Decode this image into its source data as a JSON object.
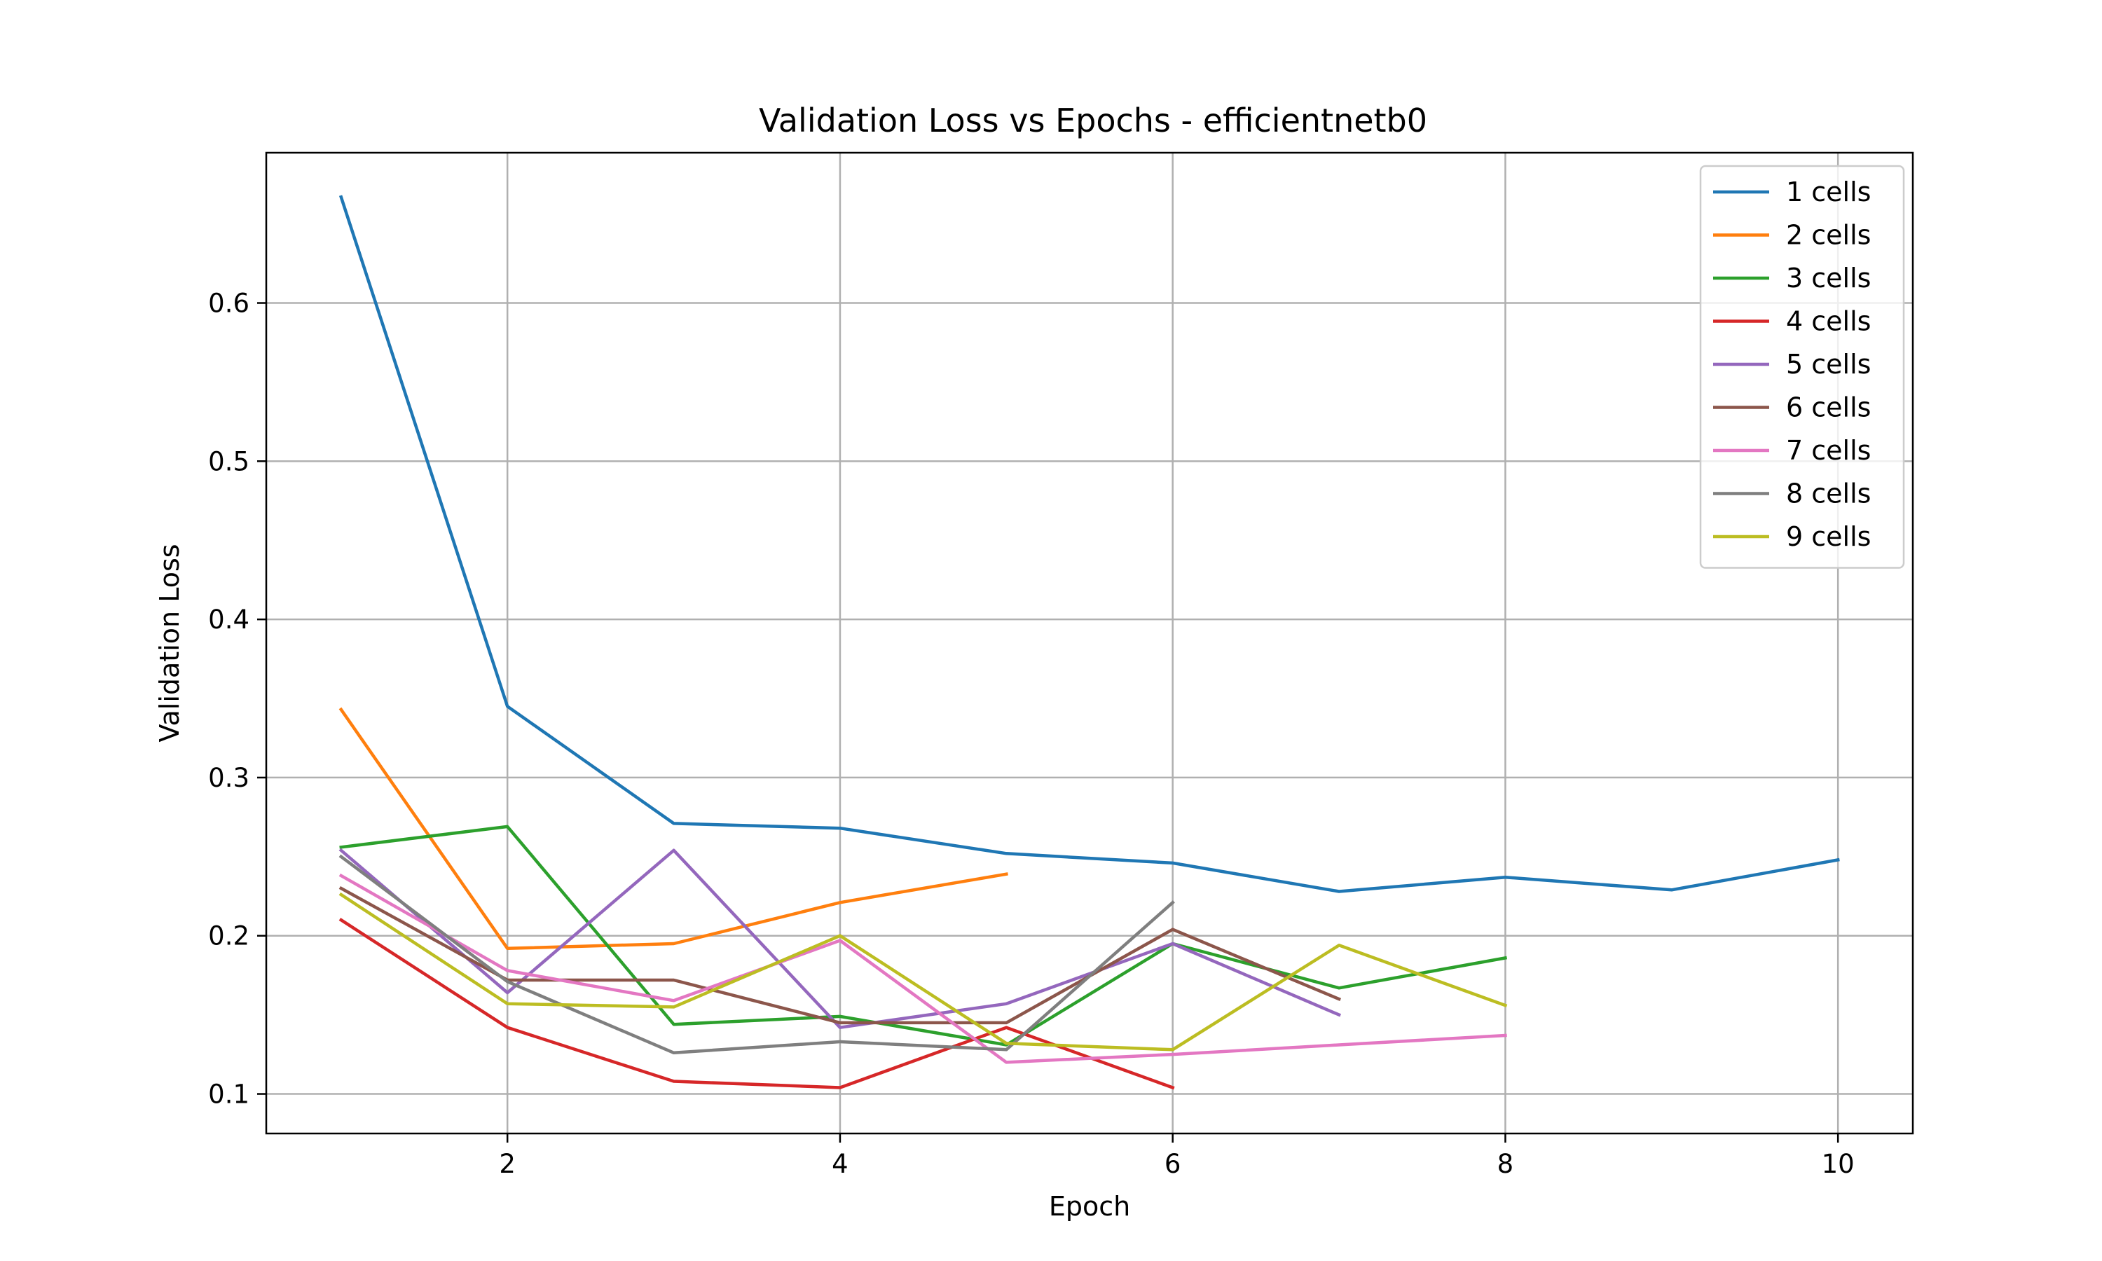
{
  "chart_data": {
    "type": "line",
    "title": "Validation Loss vs Epochs - efficientnetb0",
    "xlabel": "Epoch",
    "ylabel": "Validation Loss",
    "xlim": [
      0.55,
      10.45
    ],
    "ylim": [
      0.075,
      0.695
    ],
    "xticks": [
      2,
      4,
      6,
      8,
      10
    ],
    "yticks": [
      0.1,
      0.2,
      0.3,
      0.4,
      0.5,
      0.6
    ],
    "grid": true,
    "legend_position": "top-right",
    "series": [
      {
        "name": "1 cells",
        "color": "#1f77b4",
        "x": [
          1,
          2,
          3,
          4,
          5,
          6,
          7,
          8,
          9,
          10
        ],
        "values": [
          0.667,
          0.345,
          0.271,
          0.268,
          0.252,
          0.246,
          0.228,
          0.237,
          0.229,
          0.248
        ]
      },
      {
        "name": "2 cells",
        "color": "#ff7f0e",
        "x": [
          1,
          2,
          3,
          4,
          5
        ],
        "values": [
          0.343,
          0.192,
          0.195,
          0.221,
          0.239
        ]
      },
      {
        "name": "3 cells",
        "color": "#2ca02c",
        "x": [
          1,
          2,
          3,
          4,
          5,
          6,
          7,
          8
        ],
        "values": [
          0.256,
          0.269,
          0.144,
          0.149,
          0.131,
          0.195,
          0.167,
          0.186
        ]
      },
      {
        "name": "4 cells",
        "color": "#d62728",
        "x": [
          1,
          2,
          3,
          4,
          5,
          6
        ],
        "values": [
          0.21,
          0.142,
          0.108,
          0.104,
          0.142,
          0.104
        ]
      },
      {
        "name": "5 cells",
        "color": "#9467bd",
        "x": [
          1,
          2,
          3,
          4,
          5,
          6,
          7
        ],
        "values": [
          0.254,
          0.164,
          0.254,
          0.142,
          0.157,
          0.195,
          0.15
        ]
      },
      {
        "name": "6 cells",
        "color": "#8c564b",
        "x": [
          1,
          2,
          3,
          4,
          5,
          6,
          7
        ],
        "values": [
          0.23,
          0.172,
          0.172,
          0.145,
          0.145,
          0.204,
          0.16
        ]
      },
      {
        "name": "7 cells",
        "color": "#e377c2",
        "x": [
          1,
          2,
          3,
          4,
          5,
          6,
          7,
          8
        ],
        "values": [
          0.238,
          0.178,
          0.159,
          0.197,
          0.12,
          0.125,
          0.131,
          0.137
        ]
      },
      {
        "name": "8 cells",
        "color": "#7f7f7f",
        "x": [
          1,
          2,
          3,
          4,
          5,
          6
        ],
        "values": [
          0.25,
          0.171,
          0.126,
          0.133,
          0.128,
          0.221
        ]
      },
      {
        "name": "9 cells",
        "color": "#bcbd22",
        "x": [
          1,
          2,
          3,
          4,
          5,
          6,
          7,
          8
        ],
        "values": [
          0.226,
          0.157,
          0.155,
          0.2,
          0.132,
          0.128,
          0.194,
          0.156
        ]
      }
    ]
  }
}
